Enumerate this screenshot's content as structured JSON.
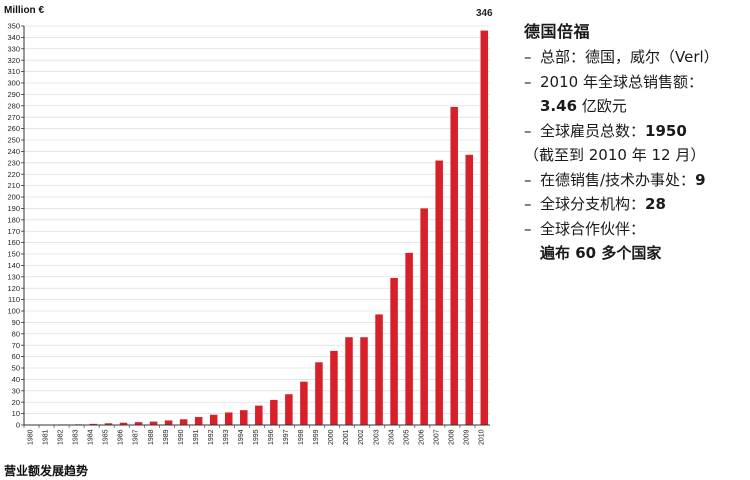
{
  "chart_data": {
    "type": "bar",
    "ylabel": "Million €",
    "xlabel": "营业额发展趋势",
    "ylim": [
      0,
      350
    ],
    "ytick_step": 10,
    "grid": true,
    "bar_color": "#d7202a",
    "categories": [
      "1980",
      "1981",
      "1982",
      "1983",
      "1984",
      "1985",
      "1986",
      "1987",
      "1988",
      "1989",
      "1990",
      "1991",
      "1992",
      "1993",
      "1994",
      "1995",
      "1996",
      "1997",
      "1998",
      "1999",
      "2000",
      "2001",
      "2002",
      "2003",
      "2004",
      "2005",
      "2006",
      "2007",
      "2008",
      "2009",
      "2010"
    ],
    "values": [
      0.3,
      0.4,
      0.5,
      0.6,
      1,
      1.5,
      2,
      2.5,
      3,
      4,
      5,
      7,
      9,
      11,
      13,
      17,
      22,
      27,
      38,
      55,
      65,
      77,
      77,
      97,
      129,
      151,
      190,
      232,
      279,
      237,
      346
    ],
    "data_labels": [
      {
        "index": 30,
        "text": "346"
      }
    ]
  },
  "info": {
    "title": "德国倍福",
    "dash": "–",
    "items": [
      {
        "line1": "总部：德国，威尔（Verl）"
      },
      {
        "line1": "2010 年全球总销售额：",
        "line2_bold": "3.46",
        "line2_rest": " 亿欧元"
      },
      {
        "line1": "全球雇员总数：",
        "line1_bold": "1950",
        "line2": "（截至到 2010 年 12 月）"
      },
      {
        "line1": "在德销售/技术办事处：",
        "line1_bold": "9"
      },
      {
        "line1": "全球分支机构：",
        "line1_bold": "28"
      },
      {
        "line1": "全球合作伙伴：",
        "line2": "遍布 60 多个国家"
      }
    ]
  }
}
